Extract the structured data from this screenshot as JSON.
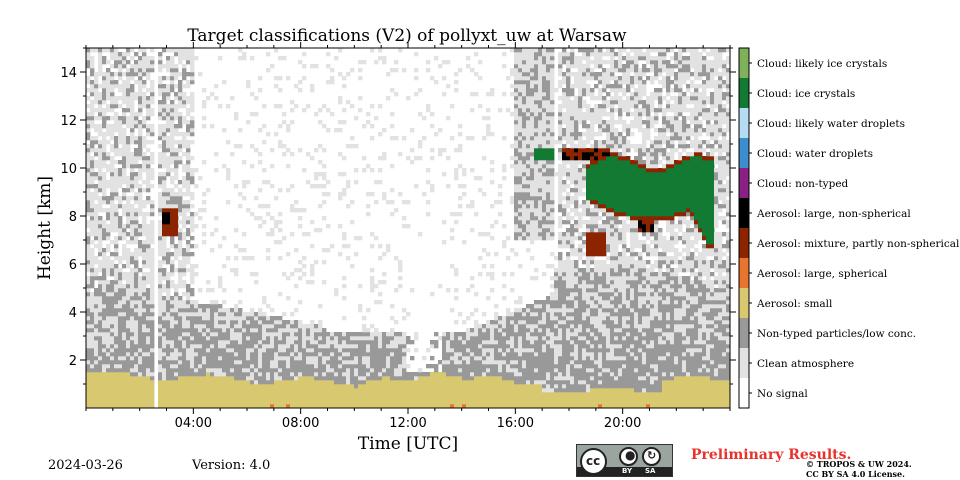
{
  "chart_data": {
    "type": "heatmap",
    "title": "Target classifications (V2) of pollyxt_uw at Warsaw",
    "xlabel": "Time [UTC]",
    "ylabel": "Height [km]",
    "xlim_hours": [
      0,
      24
    ],
    "ylim_km": [
      0,
      15
    ],
    "x_ticks": [
      "04:00",
      "08:00",
      "12:00",
      "16:00",
      "20:00"
    ],
    "y_ticks": [
      "2",
      "4",
      "6",
      "8",
      "10",
      "12",
      "14"
    ],
    "no_data_gaps_hours": [
      [
        2.48,
        2.62
      ],
      [
        17.53,
        17.62
      ]
    ],
    "classes": [
      {
        "label": "Cloud: likely ice crystals",
        "color": "#7fb05a"
      },
      {
        "label": "Cloud: ice crystals",
        "color": "#127a32"
      },
      {
        "label": "Cloud: likely water droplets",
        "color": "#b5dcf5"
      },
      {
        "label": "Cloud: water droplets",
        "color": "#3d8ccc"
      },
      {
        "label": "Cloud: non-typed",
        "color": "#8a2084"
      },
      {
        "label": "Aerosol: large, non-spherical",
        "color": "#000000"
      },
      {
        "label": "Aerosol: mixture, partly non-spherical",
        "color": "#8c2400"
      },
      {
        "label": "Aerosol: large, spherical",
        "color": "#e8742e"
      },
      {
        "label": "Aerosol: small",
        "color": "#d8c870"
      },
      {
        "label": "Non-typed particles/low conc.",
        "color": "#999999"
      },
      {
        "label": "Clean atmosphere",
        "color": "#e2e2e2"
      },
      {
        "label": "No signal",
        "color": "#ffffff"
      }
    ]
  },
  "footer": {
    "date": "2024-03-26",
    "version": "Version: 4.0",
    "preliminary": "Preliminary Results.",
    "copyright_line1": "© TROPOS & UW 2024.",
    "copyright_line2": "CC BY SA 4.0 License.",
    "license_badge": {
      "by": "BY",
      "sa": "SA",
      "cc": "cc"
    }
  }
}
